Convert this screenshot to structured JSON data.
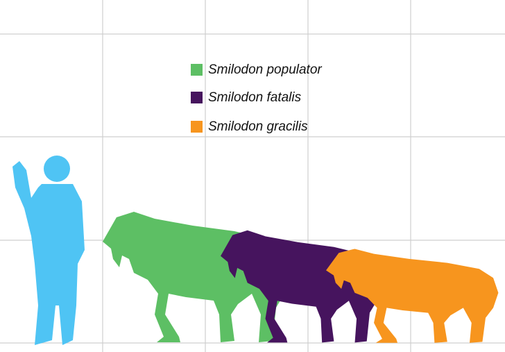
{
  "legend": [
    {
      "label": "Smilodon populator",
      "color": "#5dbf64"
    },
    {
      "label": "Smilodon fatalis",
      "color": "#46145e"
    },
    {
      "label": "Smilodon gracilis",
      "color": "#f7951e"
    }
  ],
  "human_color": "#4fc4f4"
}
